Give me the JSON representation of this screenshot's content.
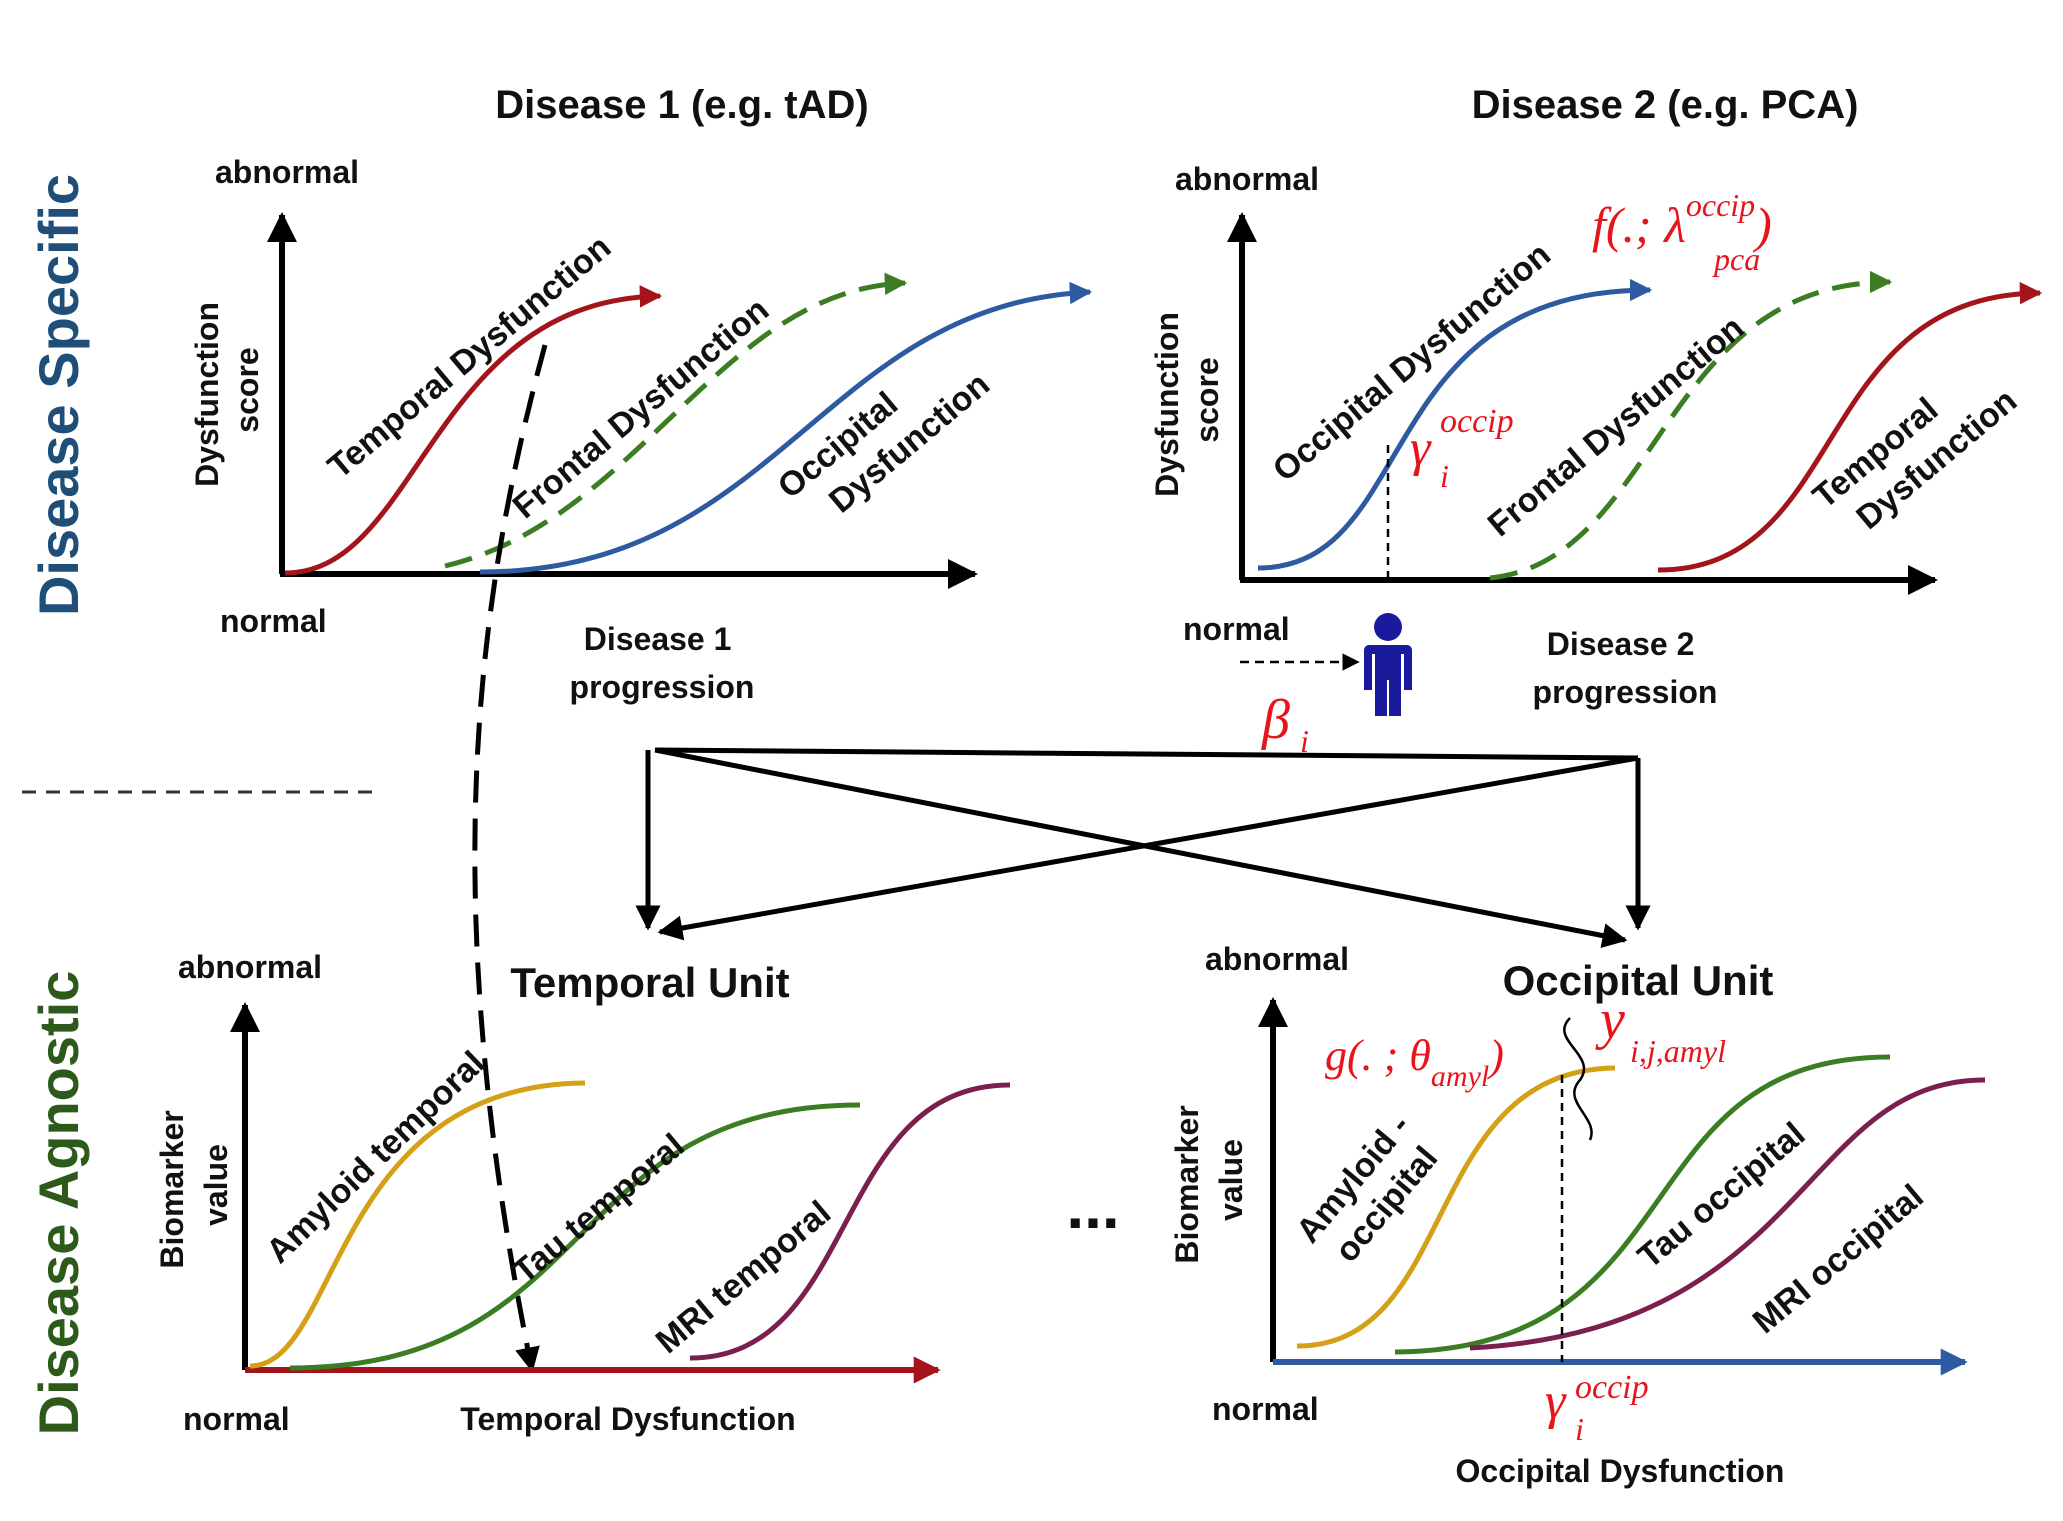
{
  "colors": {
    "temporal": "#a3141b",
    "frontal": "#3a7d22",
    "occipital": "#2d5aa0",
    "amyloid": "#d4a017",
    "tau": "#3a7d22",
    "mri": "#7b1f4e",
    "math": "#e8141b",
    "disease_specific": "#1f4e79",
    "disease_agnostic": "#2d5a1b"
  },
  "side_labels": {
    "disease_specific": "Disease Specific",
    "disease_agnostic": "Disease Agnostic"
  },
  "disease1": {
    "title": "Disease 1 (e.g. tAD)",
    "y_top": "abnormal",
    "y_bottom": "normal",
    "y_axis_line1": "Dysfunction",
    "y_axis_line2": "score",
    "x_axis_line1": "Disease 1",
    "x_axis_line2": "progression",
    "curves": {
      "temporal": "Temporal Dysfunction",
      "frontal": "Frontal Dysfunction",
      "occipital_line1": "Occipital",
      "occipital_line2": "Dysfunction"
    }
  },
  "disease2": {
    "title": "Disease 2 (e.g. PCA)",
    "y_top": "abnormal",
    "y_bottom": "normal",
    "y_axis_line1": "Dysfunction",
    "y_axis_line2": "score",
    "x_axis_line1": "Disease 2",
    "x_axis_line2": "progression",
    "curves": {
      "occipital": "Occipital Dysfunction",
      "frontal": "Frontal Dysfunction",
      "temporal_line1": "Temporal",
      "temporal_line2": "Dysfunction"
    },
    "func_f": "f(.; λ",
    "func_f_sup": "occip",
    "func_f_sub": "pca",
    "func_f_close": ")",
    "gamma": "γ",
    "gamma_sup": "occip",
    "gamma_sub": "i",
    "beta": "β",
    "beta_sub": "i"
  },
  "temporal_unit": {
    "title": "Temporal Unit",
    "y_top": "abnormal",
    "y_bottom": "normal",
    "y_axis_line1": "Biomarker",
    "y_axis_line2": "value",
    "x_axis": "Temporal Dysfunction",
    "curves": {
      "amyloid": "Amyloid temporal",
      "tau": "Tau temporal",
      "mri": "MRI temporal"
    }
  },
  "ellipsis": "...",
  "occipital_unit": {
    "title": "Occipital Unit",
    "y_top": "abnormal",
    "y_bottom": "normal",
    "y_axis_line1": "Biomarker",
    "y_axis_line2": "value",
    "x_axis": "Occipital Dysfunction",
    "curves": {
      "amyloid_line1": "Amyloid -",
      "amyloid_line2": "occipital",
      "tau": "Tau occipital",
      "mri": "MRI occipital"
    },
    "func_g": "g(. ; θ",
    "func_g_sub": "amyl",
    "func_g_close": ")",
    "y_obs": "y",
    "y_obs_sub": "i,j,amyl",
    "gamma": "γ",
    "gamma_sup": "occip",
    "gamma_sub": "i"
  }
}
